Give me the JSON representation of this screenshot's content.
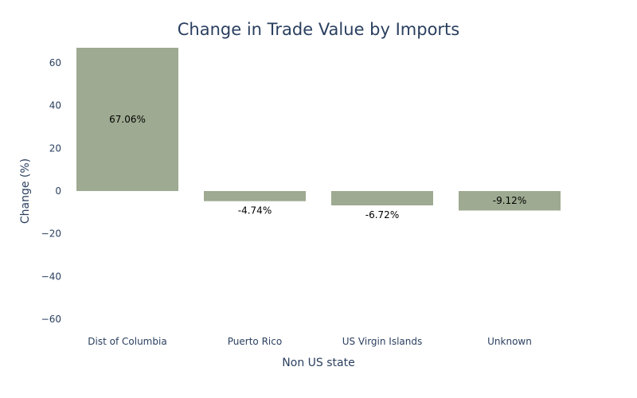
{
  "chart_data": {
    "type": "bar",
    "title": "Change in Trade Value by Imports",
    "xlabel": "Non US state",
    "ylabel": "Change (%)",
    "categories": [
      "Dist of Columbia",
      "Puerto Rico",
      "US Virgin Islands",
      "Unknown"
    ],
    "values": [
      67.06,
      -4.74,
      -6.72,
      -9.12
    ],
    "data_labels": [
      "67.06%",
      "-4.74%",
      "-6.72%",
      "-9.12%"
    ],
    "ylim": [
      -67.06,
      67.06
    ],
    "yticks": [
      -60,
      -40,
      -20,
      0,
      20,
      40,
      60
    ],
    "ytick_labels": [
      "−60",
      "−40",
      "−20",
      "0",
      "20",
      "40",
      "60"
    ],
    "bar_color": "#9eaa91",
    "grid": false,
    "legend": "none"
  }
}
